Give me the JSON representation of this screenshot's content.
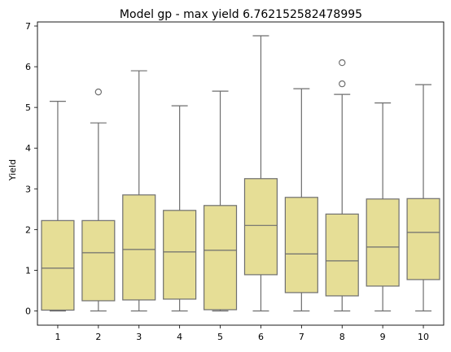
{
  "chart_data": {
    "type": "box",
    "title": "Model gp - max yield 6.762152582478995",
    "xlabel": "",
    "ylabel": "Yield",
    "ylim": [
      -0.35,
      7.1
    ],
    "y_ticks": [
      0,
      1,
      2,
      3,
      4,
      5,
      6,
      7
    ],
    "categories": [
      "1",
      "2",
      "3",
      "4",
      "5",
      "6",
      "7",
      "8",
      "9",
      "10"
    ],
    "box_color": "#E6DE96",
    "line_color": "#6e6e6e",
    "grid": false,
    "boxes": [
      {
        "category": "1",
        "whislo": 0.0,
        "q1": 0.02,
        "med": 1.05,
        "q3": 2.22,
        "whishi": 5.15,
        "fliers": []
      },
      {
        "category": "2",
        "whislo": 0.0,
        "q1": 0.25,
        "med": 1.43,
        "q3": 2.22,
        "whishi": 4.62,
        "fliers": [
          5.38
        ]
      },
      {
        "category": "3",
        "whislo": 0.0,
        "q1": 0.27,
        "med": 1.51,
        "q3": 2.85,
        "whishi": 5.9,
        "fliers": []
      },
      {
        "category": "4",
        "whislo": 0.0,
        "q1": 0.29,
        "med": 1.45,
        "q3": 2.47,
        "whishi": 5.04,
        "fliers": []
      },
      {
        "category": "5",
        "whislo": 0.0,
        "q1": 0.03,
        "med": 1.49,
        "q3": 2.59,
        "whishi": 5.4,
        "fliers": []
      },
      {
        "category": "6",
        "whislo": 0.0,
        "q1": 0.89,
        "med": 2.1,
        "q3": 3.25,
        "whishi": 6.76,
        "fliers": []
      },
      {
        "category": "7",
        "whislo": 0.0,
        "q1": 0.45,
        "med": 1.4,
        "q3": 2.79,
        "whishi": 5.46,
        "fliers": []
      },
      {
        "category": "8",
        "whislo": 0.0,
        "q1": 0.37,
        "med": 1.23,
        "q3": 2.38,
        "whishi": 5.32,
        "fliers": [
          5.58,
          6.1
        ]
      },
      {
        "category": "9",
        "whislo": 0.0,
        "q1": 0.61,
        "med": 1.57,
        "q3": 2.75,
        "whishi": 5.11,
        "fliers": []
      },
      {
        "category": "10",
        "whislo": 0.0,
        "q1": 0.77,
        "med": 1.93,
        "q3": 2.76,
        "whishi": 5.56,
        "fliers": []
      }
    ]
  }
}
